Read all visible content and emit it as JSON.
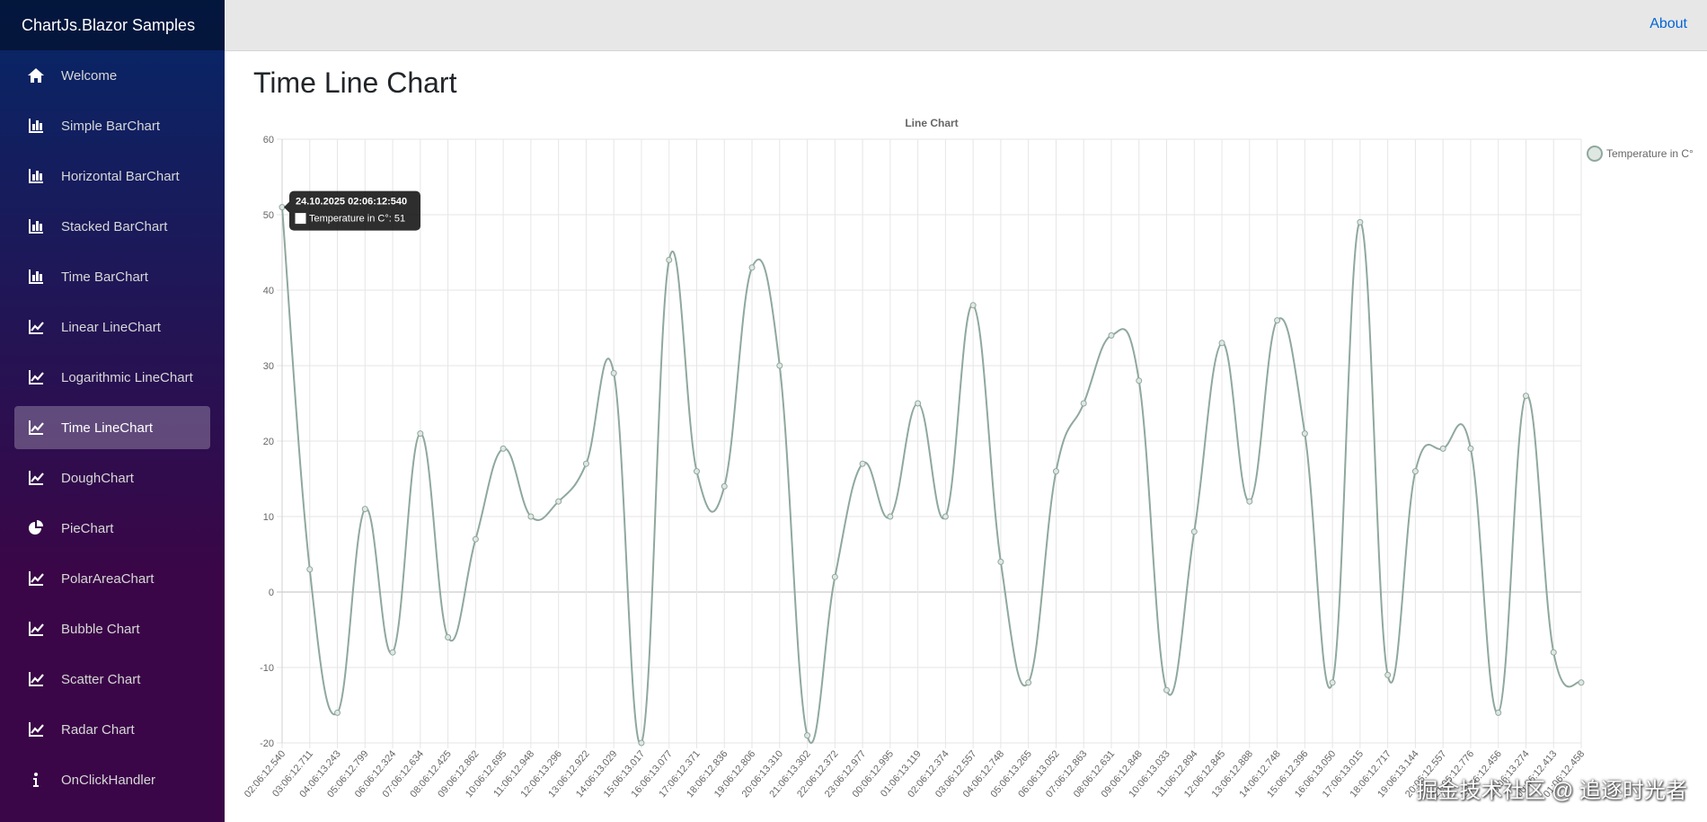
{
  "sidebar": {
    "brand": "ChartJs.Blazor Samples",
    "items": [
      {
        "label": "Welcome",
        "icon": "home-icon"
      },
      {
        "label": "Simple BarChart",
        "icon": "bar-chart-icon"
      },
      {
        "label": "Horizontal BarChart",
        "icon": "bar-chart-icon"
      },
      {
        "label": "Stacked BarChart",
        "icon": "bar-chart-icon"
      },
      {
        "label": "Time BarChart",
        "icon": "bar-chart-icon"
      },
      {
        "label": "Linear LineChart",
        "icon": "line-chart-icon"
      },
      {
        "label": "Logarithmic LineChart",
        "icon": "line-chart-icon"
      },
      {
        "label": "Time LineChart",
        "icon": "line-chart-icon",
        "active": true
      },
      {
        "label": "DoughChart",
        "icon": "line-chart-icon"
      },
      {
        "label": "PieChart",
        "icon": "pie-chart-icon"
      },
      {
        "label": "PolarAreaChart",
        "icon": "line-chart-icon"
      },
      {
        "label": "Bubble Chart",
        "icon": "line-chart-icon"
      },
      {
        "label": "Scatter Chart",
        "icon": "line-chart-icon"
      },
      {
        "label": "Radar Chart",
        "icon": "line-chart-icon"
      },
      {
        "label": "OnClickHandler",
        "icon": "info-icon"
      }
    ]
  },
  "topbar": {
    "about_label": "About"
  },
  "page": {
    "title": "Time Line Chart"
  },
  "watermark": "掘金技术社区 @ 追逐时光者",
  "colors": {
    "line": "#8fa89e",
    "point_fill": "#dfe7e2",
    "link": "#0366d6"
  },
  "chart_data": {
    "type": "line",
    "title": "Line Chart",
    "legend": {
      "position": "right",
      "label": "Temperature in C°"
    },
    "ylim": [
      -20,
      60
    ],
    "yticks": [
      60,
      50,
      40,
      30,
      20,
      10,
      0,
      -10,
      -20
    ],
    "grid": true,
    "series": [
      {
        "name": "Temperature in C°",
        "values": [
          51,
          3,
          -16,
          11,
          -8,
          21,
          -6,
          7,
          19,
          10,
          12,
          17,
          29,
          -20,
          44,
          16,
          14,
          43,
          30,
          -19,
          2,
          17,
          10,
          25,
          10,
          38,
          4,
          -12,
          16,
          25,
          34,
          28,
          -13,
          8,
          33,
          12,
          36,
          21,
          -12,
          49,
          -11,
          16,
          19,
          19,
          -16,
          26,
          -8,
          -12
        ]
      }
    ],
    "x": [
      "02:06:12.540",
      "03:06:12.711",
      "04:06:13.243",
      "05:06:12.799",
      "06:06:12.324",
      "07:06:12.634",
      "08:06:12.425",
      "09:06:12.862",
      "10:06:12.695",
      "11:06:12.948",
      "12:06:13.296",
      "13:06:12.922",
      "14:06:13.029",
      "15:06:13.017",
      "16:06:13.077",
      "17:06:12.371",
      "18:06:12.836",
      "19:06:12.806",
      "20:06:13.310",
      "21:06:13.302",
      "22:06:12.372",
      "23:06:12.977",
      "00:06:12.995",
      "01:06:13.119",
      "02:06:12.374",
      "03:06:12.557",
      "04:06:12.748",
      "05:06:13.265",
      "06:06:13.052",
      "07:06:12.863",
      "08:06:12.631",
      "09:06:12.848",
      "10:06:13.033",
      "11:06:12.894",
      "12:06:12.845",
      "13:06:12.888",
      "14:06:12.748",
      "15:06:12.396",
      "16:06:13.050",
      "17:06:13.015",
      "18:06:12.717",
      "19:06:13.144",
      "20:06:12.557",
      "21:06:12.776",
      "22:06:12.456",
      "23:06:13.274",
      "00:06:12.413",
      "01:06:12.458"
    ],
    "tooltip": {
      "title": "24.10.2025 02:06:12:540",
      "body": "Temperature in C°: 51",
      "index": 0
    }
  }
}
